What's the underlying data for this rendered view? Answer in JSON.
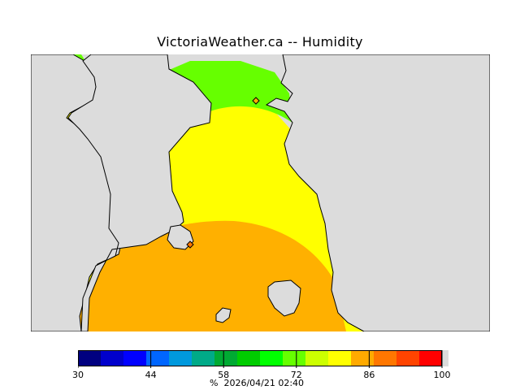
{
  "title": "VictoriaWeather.ca -- Humidity",
  "legend": {
    "min": 30,
    "max": 100,
    "ticks": [
      {
        "label": "30",
        "value": 30
      },
      {
        "label": "44",
        "value": 44
      },
      {
        "label": "58",
        "value": 58
      },
      {
        "label": "72",
        "value": 72
      },
      {
        "label": "86",
        "value": 86
      },
      {
        "label": "100",
        "value": 100
      }
    ],
    "colors": [
      "#000080",
      "#0000cc",
      "#0000ff",
      "#0066ff",
      "#0099dd",
      "#00aa88",
      "#00aa33",
      "#00cc00",
      "#00ff00",
      "#66ff00",
      "#ccff00",
      "#ffff00",
      "#ffaa00",
      "#ff7700",
      "#ff4400",
      "#ff0000"
    ],
    "unit_symbol": "%",
    "timestamp": "2026/04/21 02:40"
  },
  "map": {
    "land_color": "#dcdcdc",
    "zones": [
      {
        "name": "green-zone",
        "color": "#66ff00"
      },
      {
        "name": "yellow-zone",
        "color": "#ffff00"
      },
      {
        "name": "orange-zone",
        "color": "#ffb000"
      }
    ]
  }
}
